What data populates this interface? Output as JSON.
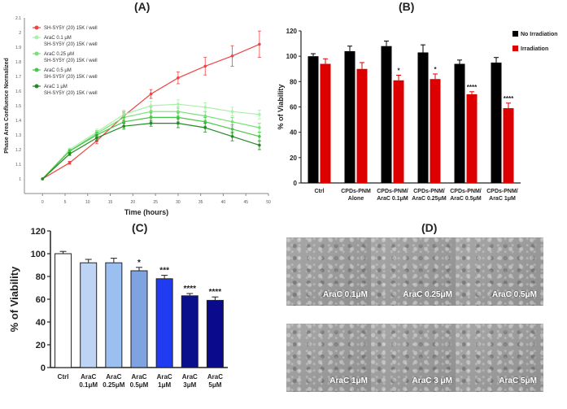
{
  "panels": {
    "a": "(A)",
    "b": "(B)",
    "c": "(C)",
    "d": "(D)"
  },
  "chart_data": [
    {
      "id": "A",
      "type": "line",
      "title": "(A)",
      "xlabel": "Time (hours)",
      "ylabel": "Phase Area Confluence Normalized",
      "xlim": [
        -4,
        50
      ],
      "ylim": [
        0.9,
        2.1
      ],
      "xticks": [
        "0",
        "5",
        "10",
        "15",
        "20",
        "25",
        "30",
        "35",
        "40",
        "45",
        "50"
      ],
      "yticks": [
        "1",
        "1.1",
        "1.2",
        "1.3",
        "1.4",
        "1.5",
        "1.6",
        "1.7",
        "1.8",
        "1.9",
        "2",
        "2.1"
      ],
      "x": [
        0,
        6,
        12,
        18,
        24,
        30,
        36,
        42,
        48
      ],
      "legend_position": "top-left",
      "series": [
        {
          "name": "SH-SY5Y (20) 15K / well",
          "color": "#ee4444",
          "values": [
            1.0,
            1.11,
            1.26,
            1.43,
            1.58,
            1.69,
            1.77,
            1.84,
            1.92
          ],
          "errors": [
            0,
            0.01,
            0.02,
            0.03,
            0.03,
            0.04,
            0.06,
            0.07,
            0.09
          ]
        },
        {
          "name": "AraC 0.1 μM\nSH-SY5Y (20) 15K / well",
          "color": "#a9f0a9",
          "values": [
            1.0,
            1.2,
            1.32,
            1.44,
            1.5,
            1.51,
            1.49,
            1.46,
            1.44
          ],
          "errors": [
            0,
            0.01,
            0.02,
            0.03,
            0.03,
            0.03,
            0.03,
            0.03,
            0.03
          ]
        },
        {
          "name": "AraC 0.25 μM\nSH-SY5Y (20) 15K / well",
          "color": "#77e077",
          "values": [
            1.0,
            1.19,
            1.31,
            1.42,
            1.46,
            1.46,
            1.43,
            1.39,
            1.35
          ],
          "errors": [
            0,
            0.01,
            0.02,
            0.03,
            0.03,
            0.03,
            0.03,
            0.03,
            0.03
          ]
        },
        {
          "name": "AraC 0.5 μM\nSH-SY5Y (20) 15K / well",
          "color": "#46c646",
          "values": [
            1.0,
            1.19,
            1.3,
            1.39,
            1.42,
            1.42,
            1.39,
            1.34,
            1.29
          ],
          "errors": [
            0,
            0.01,
            0.02,
            0.03,
            0.03,
            0.03,
            0.03,
            0.03,
            0.03
          ]
        },
        {
          "name": "AraC 1 μM\nSH-SY5Y (20) 15K / well",
          "color": "#238a23",
          "values": [
            1.0,
            1.17,
            1.28,
            1.36,
            1.38,
            1.38,
            1.35,
            1.29,
            1.23
          ],
          "errors": [
            0,
            0.01,
            0.02,
            0.02,
            0.02,
            0.03,
            0.03,
            0.03,
            0.03
          ]
        }
      ]
    },
    {
      "id": "B",
      "type": "bar",
      "title": "(B)",
      "ylabel": "% of Viability",
      "ylim": [
        0,
        120
      ],
      "yticks": [
        "0",
        "20",
        "40",
        "60",
        "80",
        "100",
        "120"
      ],
      "categories": [
        "Ctrl",
        "CPDs-PNM\nAlone",
        "CPDs-PNM/\nAraC 0.1μM",
        "CPDs-PNM/\nAraC 0.25μM",
        "CPDs-PNM/\nAraC 0.5μM",
        "CPDs-PNM/\nAraC 1μM"
      ],
      "legend_position": "top-right",
      "series": [
        {
          "name": "No Irradiation",
          "color": "#000000",
          "values": [
            100,
            104,
            108,
            103,
            94,
            95
          ],
          "errors": [
            2,
            4,
            4,
            6,
            3,
            4
          ],
          "annotations": [
            "",
            "",
            "",
            "",
            "",
            ""
          ]
        },
        {
          "name": "Irradiation",
          "color": "#dd0000",
          "values": [
            94,
            90,
            81,
            82,
            70,
            59
          ],
          "errors": [
            4,
            5,
            4,
            4,
            2,
            4
          ],
          "annotations": [
            "",
            "",
            "*",
            "*",
            "****",
            "****"
          ]
        }
      ]
    },
    {
      "id": "C",
      "type": "bar",
      "title": "(C)",
      "ylabel": "% of Viability",
      "ylim": [
        0,
        120
      ],
      "yticks": [
        "0",
        "20",
        "40",
        "60",
        "80",
        "100",
        "120"
      ],
      "categories": [
        "Ctrl",
        "AraC\n0.1μM",
        "AraC\n0.25μM",
        "AraC\n0.5μM",
        "AraC\n1μM",
        "AraC\n3μM",
        "AraC\n5μM"
      ],
      "values": [
        100,
        92,
        92,
        85,
        78,
        63,
        59
      ],
      "errors": [
        2,
        3,
        4,
        3,
        3,
        2,
        3
      ],
      "colors": [
        "#ffffff",
        "#bed4f5",
        "#9bbff0",
        "#7ea3e0",
        "#1f3cf0",
        "#0a108c",
        "#0a0a8c"
      ],
      "annotations": [
        "",
        "",
        "",
        "*",
        "***",
        "****",
        "****"
      ]
    }
  ],
  "images": [
    {
      "label": "AraC 0.1μM"
    },
    {
      "label": "AraC 0.25μM"
    },
    {
      "label": "AraC 0.5μM"
    },
    {
      "label": "AraC  1μM"
    },
    {
      "label": "AraC 3  μM"
    },
    {
      "label": "AraC  5μM"
    }
  ]
}
